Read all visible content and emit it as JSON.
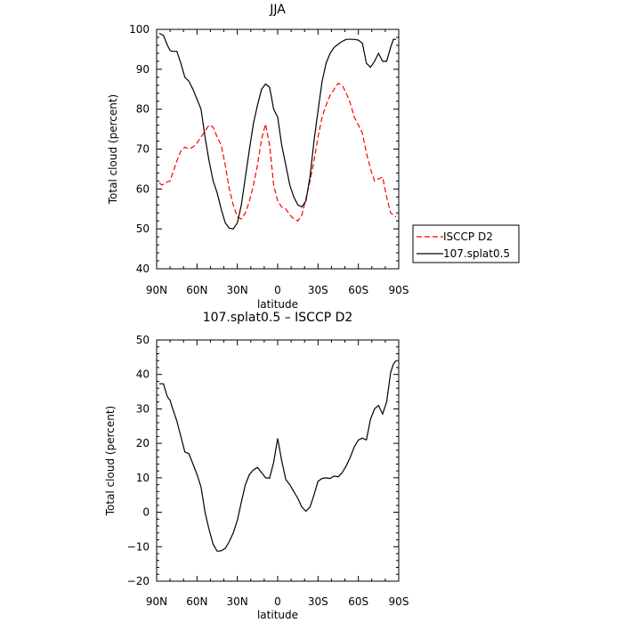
{
  "chart_data": [
    {
      "type": "line",
      "title": "JJA",
      "xlabel": "latitude",
      "ylabel": "Total cloud (percent)",
      "xlim": [
        90,
        -90
      ],
      "ylim": [
        40,
        100
      ],
      "xticks": [
        90,
        60,
        30,
        0,
        -30,
        -60,
        -90
      ],
      "xtick_labels": [
        "90N",
        "60N",
        "30N",
        "0",
        "30S",
        "60S",
        "90S"
      ],
      "yticks": [
        40,
        50,
        60,
        70,
        80,
        90,
        100
      ],
      "ytick_labels": [
        "40",
        "50",
        "60",
        "70",
        "80",
        "90",
        "100"
      ],
      "legend_position": "right",
      "series": [
        {
          "name": "ISCCP D2",
          "color": "#ff0000",
          "dash": "dashed",
          "x": [
            88,
            86,
            82,
            80,
            78,
            75,
            72,
            69,
            66,
            63,
            60,
            57,
            54,
            51,
            48,
            45,
            42,
            39,
            36,
            33,
            30,
            27,
            24,
            21,
            18,
            15,
            12,
            9,
            6,
            3,
            0,
            -3,
            -6,
            -9,
            -12,
            -15,
            -18,
            -21,
            -24,
            -27,
            -30,
            -33,
            -36,
            -39,
            -42,
            -45,
            -48,
            -51,
            -54,
            -57,
            -60,
            -63,
            -66,
            -69,
            -72,
            -75,
            -78,
            -81,
            -84,
            -86,
            -88
          ],
          "y": [
            61.5,
            61,
            61.8,
            62,
            64,
            67,
            69.5,
            70.5,
            70,
            70.5,
            71.5,
            73,
            74.5,
            76,
            75.5,
            73,
            71,
            66,
            60,
            56,
            53,
            52.5,
            54,
            57,
            61,
            66,
            72.5,
            76.3,
            71,
            61,
            57,
            55.5,
            55,
            53.5,
            52.5,
            52,
            53.5,
            57.5,
            62,
            67,
            73,
            78,
            81,
            83.5,
            85,
            86.5,
            86,
            84,
            81.5,
            78,
            76,
            74,
            69,
            65,
            62,
            62.5,
            63,
            58,
            54,
            53.5,
            53
          ]
        },
        {
          "name": "107.splat0.5",
          "color": "#000000",
          "dash": "solid",
          "x": [
            88,
            85,
            82,
            80,
            78,
            75,
            72,
            69,
            66,
            63,
            60,
            57,
            54,
            51,
            48,
            45,
            42,
            39,
            36,
            33,
            30,
            27,
            24,
            21,
            18,
            15,
            12,
            9,
            6,
            3,
            0,
            -3,
            -6,
            -9,
            -12,
            -15,
            -18,
            -21,
            -24,
            -27,
            -30,
            -33,
            -36,
            -39,
            -42,
            -45,
            -48,
            -51,
            -54,
            -57,
            -60,
            -63,
            -66,
            -69,
            -72,
            -75,
            -78,
            -81,
            -84,
            -86,
            -88
          ],
          "y": [
            99,
            98.5,
            96,
            94.7,
            94.5,
            94.5,
            91.5,
            88,
            87,
            85,
            82.5,
            80,
            73,
            67,
            62,
            59,
            55,
            51.5,
            50.2,
            50,
            51.5,
            56,
            63,
            70,
            76.5,
            81,
            85,
            86.3,
            85.5,
            80,
            78,
            71,
            66,
            61,
            58,
            56,
            55.5,
            57,
            63,
            72,
            79.5,
            87,
            91.5,
            94,
            95.5,
            96.3,
            97,
            97.5,
            97.5,
            97.5,
            97.3,
            96.5,
            91.5,
            90.5,
            92,
            94,
            92,
            92,
            95.5,
            97.5,
            97.5
          ]
        }
      ]
    },
    {
      "type": "line",
      "title": "107.splat0.5 – ISCCP D2",
      "xlabel": "latitude",
      "ylabel": "Total cloud (percent)",
      "xlim": [
        90,
        -90
      ],
      "ylim": [
        -20,
        50
      ],
      "xticks": [
        90,
        60,
        30,
        0,
        -30,
        -60,
        -90
      ],
      "xtick_labels": [
        "90N",
        "60N",
        "30N",
        "0",
        "30S",
        "60S",
        "90S"
      ],
      "yticks": [
        -20,
        -10,
        0,
        10,
        20,
        30,
        40,
        50
      ],
      "ytick_labels": [
        "−20",
        "−10",
        "0",
        "10",
        "20",
        "30",
        "40",
        "50"
      ],
      "series": [
        {
          "color": "#000000",
          "dash": "solid",
          "x": [
            88,
            85,
            82,
            80,
            78,
            75,
            72,
            69,
            66,
            63,
            60,
            57,
            54,
            51,
            48,
            45,
            42,
            39,
            36,
            33,
            30,
            27,
            24,
            21,
            18,
            15,
            12,
            9,
            6,
            3,
            0,
            -3,
            -6,
            -9,
            -12,
            -15,
            -18,
            -21,
            -24,
            -27,
            -30,
            -33,
            -36,
            -39,
            -42,
            -45,
            -48,
            -51,
            -54,
            -57,
            -60,
            -63,
            -66,
            -69,
            -72,
            -75,
            -78,
            -81,
            -84,
            -86,
            -88
          ],
          "y": [
            37.3,
            37.3,
            33.5,
            32.5,
            30,
            26.5,
            22,
            17.5,
            17,
            14,
            11,
            7.3,
            0,
            -5,
            -9.3,
            -11.3,
            -11.2,
            -10.5,
            -8.5,
            -6,
            -2.3,
            3,
            8,
            11,
            12.3,
            13,
            11.5,
            10,
            9.9,
            14.5,
            21.4,
            15,
            9.5,
            8,
            6,
            4,
            1.5,
            0.3,
            1.5,
            5,
            9,
            9.8,
            10,
            9.8,
            10.5,
            10.3,
            11.5,
            13.5,
            16,
            19,
            21,
            21.5,
            21,
            27,
            30,
            31,
            28.5,
            32,
            40.5,
            43,
            44
          ]
        }
      ]
    }
  ]
}
